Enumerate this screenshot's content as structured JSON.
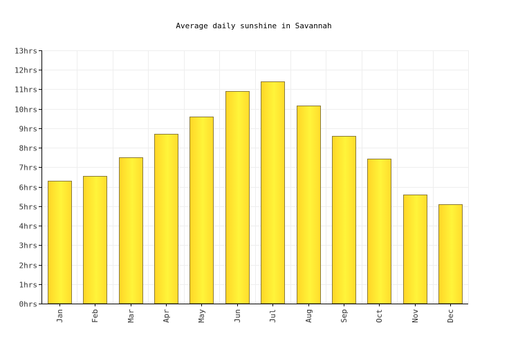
{
  "chart_data": {
    "type": "bar",
    "title": "Average daily sunshine in Savannah",
    "xlabel": "",
    "ylabel": "",
    "categories": [
      "Jan",
      "Feb",
      "Mar",
      "Apr",
      "May",
      "Jun",
      "Jul",
      "Aug",
      "Sep",
      "Oct",
      "Nov",
      "Dec"
    ],
    "values": [
      6.3,
      6.55,
      7.5,
      8.7,
      9.6,
      10.9,
      11.4,
      10.15,
      8.6,
      7.45,
      5.6,
      5.1
    ],
    "ylim": [
      0,
      13
    ],
    "yticks": [
      "0hrs",
      "1hrs",
      "2hrs",
      "3hrs",
      "4hrs",
      "5hrs",
      "6hrs",
      "7hrs",
      "8hrs",
      "9hrs",
      "10hrs",
      "11hrs",
      "12hrs",
      "13hrs"
    ],
    "grid": true,
    "legend": "none",
    "bar_color": "#ffe030",
    "bar_highlight": "#fff842",
    "bar_edge": "#8a7a3a"
  }
}
